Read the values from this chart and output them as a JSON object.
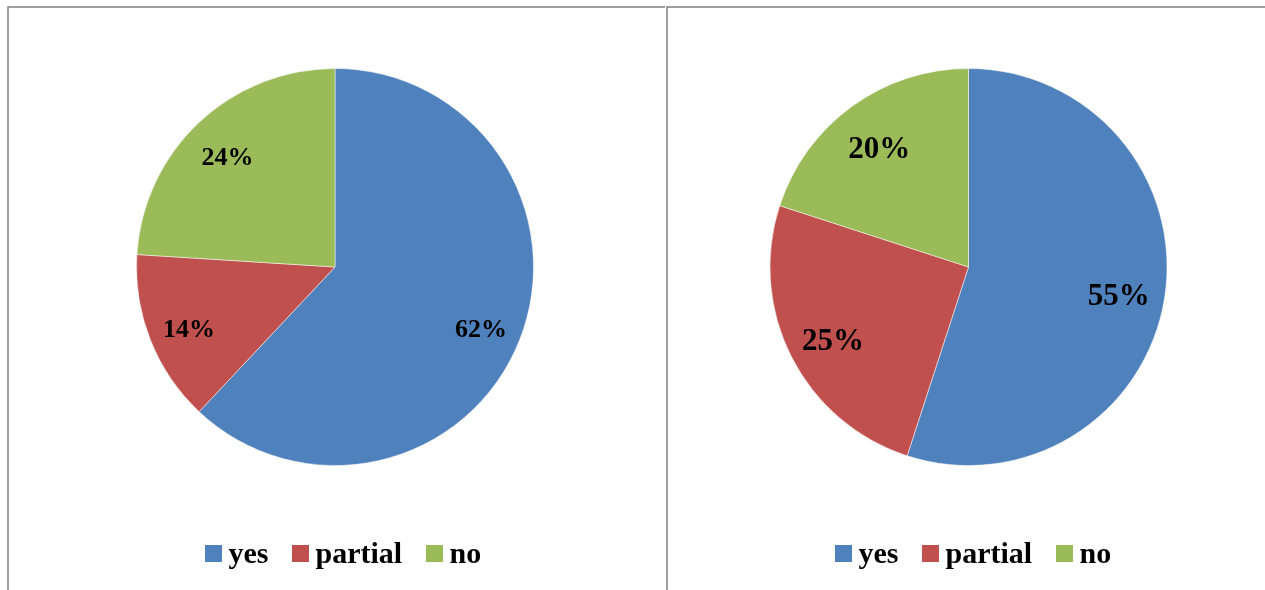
{
  "chart_data": [
    {
      "type": "pie",
      "categories": [
        "yes",
        "partial",
        "no"
      ],
      "values": [
        62,
        14,
        24
      ],
      "value_labels": [
        "62%",
        "14%",
        "24%"
      ],
      "colors": [
        "#4f81bd",
        "#c0504d",
        "#9bbb59"
      ],
      "legend": "bottom"
    },
    {
      "type": "pie",
      "categories": [
        "yes",
        "partial",
        "no"
      ],
      "values": [
        55,
        25,
        20
      ],
      "value_labels": [
        "55%",
        "25%",
        "20%"
      ],
      "colors": [
        "#4f81bd",
        "#c0504d",
        "#9bbb59"
      ],
      "legend": "bottom"
    }
  ]
}
